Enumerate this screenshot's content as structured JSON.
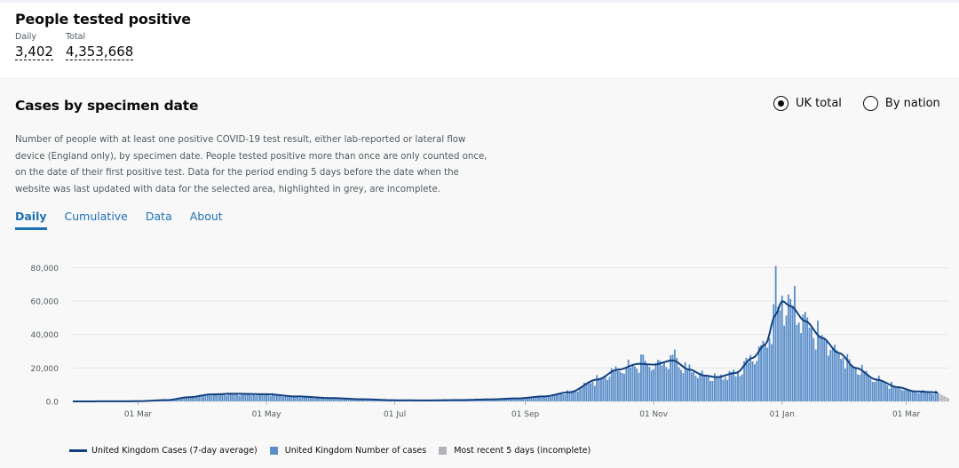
{
  "headline": {
    "title": "People tested positive",
    "daily_label": "Daily",
    "daily_value": "3,402",
    "total_label": "Total",
    "total_value": "4,353,668"
  },
  "card": {
    "title": "Cases by specimen date",
    "radio_options": [
      "UK total",
      "By nation"
    ],
    "selected_radio": "UK total",
    "description": "Number of people with at least one positive COVID-19 test result, either lab-reported or lateral flow device (England only), by specimen date. People tested positive more than once are only counted once, on the date of their first positive test. Data for the period ending 5 days before the date when the website was last updated with data for the selected area, highlighted in grey, are incomplete.",
    "tabs": [
      "Daily",
      "Cumulative",
      "Data",
      "About"
    ],
    "active_tab": "Daily"
  },
  "chart_data": {
    "type": "bar",
    "x_start": "2020-01-30",
    "x_end": "2021-03-21",
    "x_tick_labels": [
      "01 Mar",
      "01 May",
      "01 Jul",
      "01 Sep",
      "01 Nov",
      "01 Jan",
      "01 Mar"
    ],
    "x_tick_dates": [
      "2020-03-01",
      "2020-05-01",
      "2020-07-01",
      "2020-09-01",
      "2020-11-01",
      "2021-01-01",
      "2021-03-01"
    ],
    "y_tick_labels": [
      "0.0",
      "20,000",
      "40,000",
      "60,000",
      "80,000"
    ],
    "y_ticks": [
      0,
      20000,
      40000,
      60000,
      80000
    ],
    "ylim": [
      0,
      85000
    ],
    "grid": true,
    "legend_position": "bottom-left",
    "series": [
      {
        "name": "United Kingdom Cases (7-day average)",
        "kind": "line",
        "color": "#12407f",
        "anchors": [
          [
            "2020-01-30",
            0
          ],
          [
            "2020-02-29",
            100
          ],
          [
            "2020-03-15",
            800
          ],
          [
            "2020-03-25",
            2500
          ],
          [
            "2020-04-05",
            4200
          ],
          [
            "2020-04-15",
            4600
          ],
          [
            "2020-05-01",
            4300
          ],
          [
            "2020-05-15",
            3000
          ],
          [
            "2020-06-01",
            2000
          ],
          [
            "2020-06-15",
            1300
          ],
          [
            "2020-07-01",
            700
          ],
          [
            "2020-07-15",
            600
          ],
          [
            "2020-08-01",
            800
          ],
          [
            "2020-08-15",
            1200
          ],
          [
            "2020-08-28",
            1800
          ],
          [
            "2020-09-10",
            3000
          ],
          [
            "2020-09-22",
            5500
          ],
          [
            "2020-10-05",
            13000
          ],
          [
            "2020-10-15",
            19000
          ],
          [
            "2020-10-25",
            22500
          ],
          [
            "2020-11-01",
            22000
          ],
          [
            "2020-11-10",
            24500
          ],
          [
            "2020-11-18",
            19000
          ],
          [
            "2020-11-25",
            15500
          ],
          [
            "2020-12-01",
            14500
          ],
          [
            "2020-12-10",
            17000
          ],
          [
            "2020-12-18",
            26000
          ],
          [
            "2020-12-24",
            34000
          ],
          [
            "2020-12-29",
            52000
          ],
          [
            "2021-01-01",
            60000
          ],
          [
            "2021-01-05",
            57000
          ],
          [
            "2021-01-12",
            48000
          ],
          [
            "2021-01-20",
            38000
          ],
          [
            "2021-01-28",
            29000
          ],
          [
            "2021-02-05",
            20000
          ],
          [
            "2021-02-15",
            13000
          ],
          [
            "2021-02-25",
            8500
          ],
          [
            "2021-03-05",
            6000
          ],
          [
            "2021-03-12",
            5600
          ],
          [
            "2021-03-16",
            5300
          ]
        ]
      },
      {
        "name": "United Kingdom Number of cases",
        "kind": "bar",
        "color": "#5a8ec9"
      },
      {
        "name": "Most recent 5 days (incomplete)",
        "kind": "bar",
        "color": "#b1b4b6"
      }
    ],
    "incomplete_from": "2021-03-17",
    "spikes": [
      [
        "2020-12-29",
        81000
      ],
      [
        "2021-01-04",
        64000
      ],
      [
        "2021-01-07",
        69000
      ],
      [
        "2020-11-11",
        31000
      ],
      [
        "2020-10-27",
        28000
      ]
    ]
  }
}
